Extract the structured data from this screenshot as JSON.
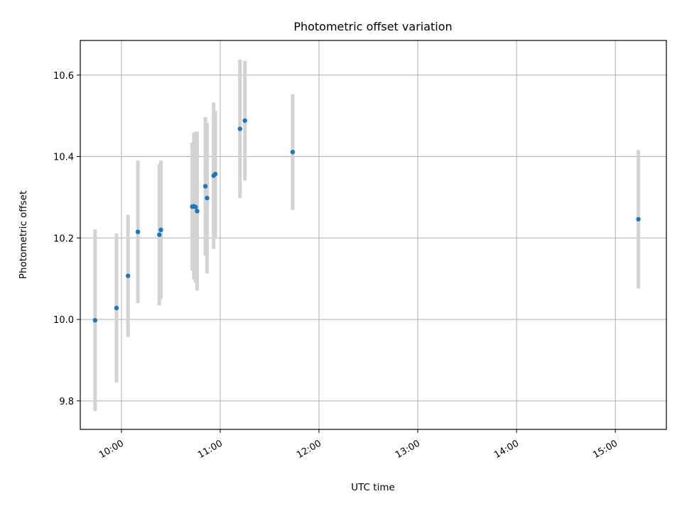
{
  "chart_data": {
    "type": "scatter",
    "title": "Photometric offset variation",
    "xlabel": "UTC time",
    "ylabel": "Photometric offset",
    "grid": true,
    "x_axis": {
      "kind": "time",
      "range": [
        "09:35",
        "15:31"
      ],
      "ticks": [
        "10:00",
        "11:00",
        "12:00",
        "13:00",
        "14:00",
        "15:00"
      ]
    },
    "y_axis": {
      "range": [
        9.73,
        10.685
      ],
      "ticks": [
        9.8,
        10.0,
        10.2,
        10.4,
        10.6
      ],
      "tick_labels": [
        "9.8",
        "10.0",
        "10.2",
        "10.4",
        "10.6"
      ]
    },
    "series": [
      {
        "marker_color": "#1f77b4",
        "errorbar_color": "#d3d3d3",
        "points": [
          {
            "time": "09:44",
            "y": 9.998,
            "err": 0.223
          },
          {
            "time": "09:57",
            "y": 10.028,
            "err": 0.183
          },
          {
            "time": "10:04",
            "y": 10.107,
            "err": 0.15
          },
          {
            "time": "10:10",
            "y": 10.215,
            "err": 0.175
          },
          {
            "time": "10:23",
            "y": 10.208,
            "err": 0.173
          },
          {
            "time": "10:24",
            "y": 10.22,
            "err": 0.17
          },
          {
            "time": "10:43",
            "y": 10.277,
            "err": 0.157
          },
          {
            "time": "10:44",
            "y": 10.278,
            "err": 0.18
          },
          {
            "time": "10:45",
            "y": 10.276,
            "err": 0.185
          },
          {
            "time": "10:46",
            "y": 10.266,
            "err": 0.195
          },
          {
            "time": "10:51",
            "y": 10.327,
            "err": 0.17
          },
          {
            "time": "10:52",
            "y": 10.298,
            "err": 0.185
          },
          {
            "time": "10:56",
            "y": 10.353,
            "err": 0.18
          },
          {
            "time": "10:57",
            "y": 10.357,
            "err": 0.155
          },
          {
            "time": "11:12",
            "y": 10.468,
            "err": 0.17
          },
          {
            "time": "11:15",
            "y": 10.488,
            "err": 0.147
          },
          {
            "time": "11:44",
            "y": 10.411,
            "err": 0.142
          },
          {
            "time": "15:14",
            "y": 10.246,
            "err": 0.17
          }
        ]
      }
    ]
  }
}
